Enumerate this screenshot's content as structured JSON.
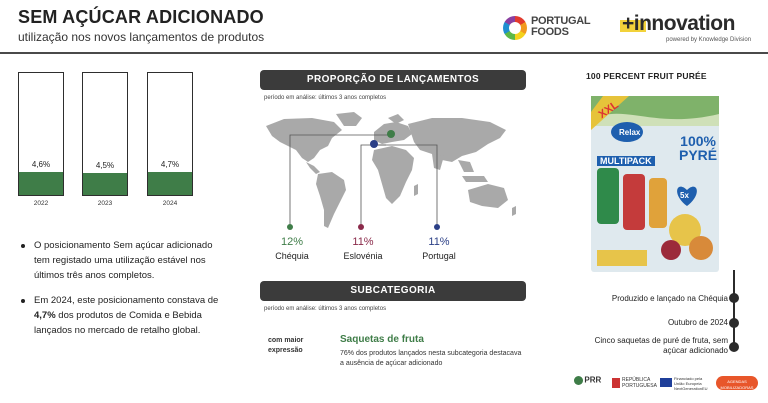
{
  "header": {
    "title": "SEM AÇÚCAR ADICIONADO",
    "subtitle": "utilização nos novos lançamentos de produtos"
  },
  "logos": {
    "portugal_foods_line1": "PORTUGAL",
    "portugal_foods_line2": "FOODS",
    "innovation": "+innovation",
    "innovation_sub": "powered by Knowledge Division"
  },
  "chart_data": {
    "type": "bar",
    "categories": [
      "2022",
      "2023",
      "2024"
    ],
    "values": [
      4.6,
      4.5,
      4.7
    ],
    "value_labels": [
      "4,6%",
      "4,5%",
      "4,7%"
    ]
  },
  "bullets": {
    "b1": "O posicionamento Sem açúcar adicionado tem registado uma utilização estável nos últimos três anos completos.",
    "b2_pre": "Em 2024, este posicionamento constava de ",
    "b2_bold": "4,7%",
    "b2_post": " dos produtos de Comida e Bebida lançados no mercado de retalho global."
  },
  "launches": {
    "title": "PROPORÇÃO DE LANÇAMENTOS",
    "period": "período em análise: últimos 3 anos completos",
    "countries": [
      {
        "pct": "12%",
        "name": "Chéquia",
        "color": "#3f7d48"
      },
      {
        "pct": "11%",
        "name": "Eslovénia",
        "color": "#8a2a4a"
      },
      {
        "pct": "11%",
        "name": "Portugal",
        "color": "#2b3f86"
      }
    ]
  },
  "subcategory": {
    "title": "SUBCATEGORIA",
    "period": "período em análise: últimos 3 anos completos",
    "label": "com maior expressão",
    "name": "Saquetas de fruta",
    "text": "76% dos produtos lançados nesta subcategoria destacava a ausência de açúcar adicionado"
  },
  "product": {
    "title": "100 PERCENT FRUIT PURÉE",
    "pack_brand": "Relax",
    "pack_line1": "100%",
    "pack_line2": "PYRÉ",
    "pack_multi": "MULTIPACK",
    "pack_xxl": "XXL",
    "pack_count": "5x",
    "timeline": [
      "Produzido e lançado na Chéquia",
      "Outubro de 2024",
      "Cinco saquetas de puré de fruta, sem açúcar adicionado"
    ]
  },
  "footer": {
    "prr": "PRR",
    "republica": "REPÚBLICA PORTUGUESA",
    "eu": "Financiado pela União Europeia NextGenerationEU",
    "agenda": "AGENDAS MOBILIZADORAS"
  },
  "colors": {
    "bar_green": "#3f7d48",
    "pill_dark": "#3b3b3b",
    "map_gray": "#a9a9a9"
  }
}
